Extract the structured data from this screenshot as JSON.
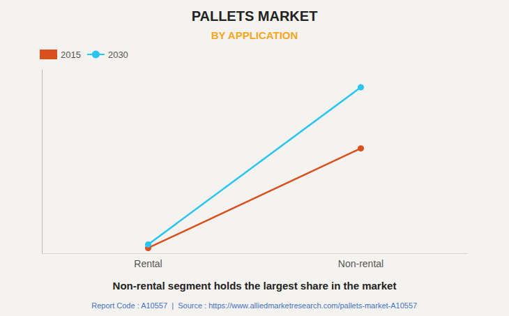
{
  "chart_data": {
    "type": "line",
    "title": "PALLETS MARKET",
    "subtitle": "BY APPLICATION",
    "categories": [
      "Rental",
      "Non-rental"
    ],
    "series": [
      {
        "name": "2015",
        "color": "#d94f1e",
        "values": [
          0.03,
          0.6
        ]
      },
      {
        "name": "2030",
        "color": "#29c5f0",
        "values": [
          0.05,
          0.95
        ]
      }
    ],
    "ylim": [
      0,
      1.05
    ],
    "yticks": [],
    "grid": false,
    "tick_labels": "x",
    "legend": "upper left",
    "marker": "circle",
    "annotations": [
      "Non-rental segment holds the largest share in the market",
      "Report Code : A10557  |  Source : https://www.alliedmarketresearch.com/pallets-market-A10557"
    ]
  }
}
